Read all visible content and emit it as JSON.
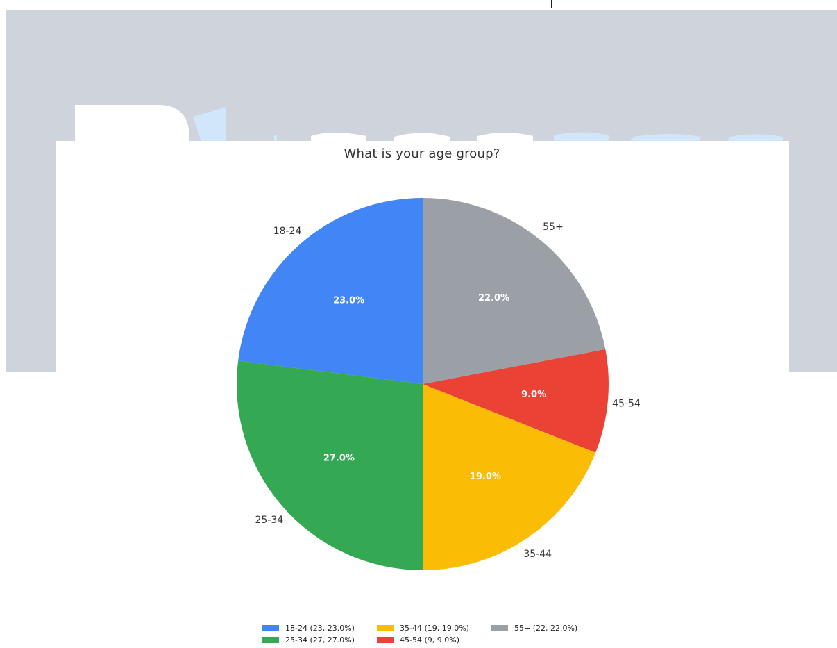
{
  "chart_data": {
    "type": "pie",
    "title": "What is your age group?",
    "slices": [
      {
        "label": "18-24",
        "value": 23,
        "percent_label": "23.0%",
        "legend": "18-24 (23, 23.0%)",
        "color": "#4285F4"
      },
      {
        "label": "25-34",
        "value": 27,
        "percent_label": "27.0%",
        "legend": "25-34 (27, 27.0%)",
        "color": "#34A853"
      },
      {
        "label": "35-44",
        "value": 19,
        "percent_label": "19.0%",
        "legend": "35-44 (19, 19.0%)",
        "color": "#FBBC05"
      },
      {
        "label": "45-54",
        "value": 9,
        "percent_label": "9.0%",
        "legend": "45-54 (9, 9.0%)",
        "color": "#EA4335"
      },
      {
        "label": "55+",
        "value": 22,
        "percent_label": "22.0%",
        "legend": "55+ (22, 22.0%)",
        "color": "#9AA0A6"
      }
    ],
    "legend_position": "bottom-center"
  },
  "banner": {
    "logo_colors": [
      "#ffffff",
      "#d2e6fb"
    ]
  }
}
